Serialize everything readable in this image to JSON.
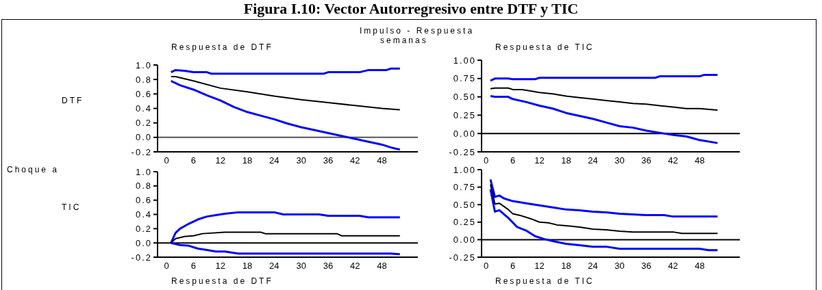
{
  "chart_data": [
    {
      "type": "line",
      "title": "Respuesta de DTF",
      "ylabel": "DTF",
      "annotations": [
        "Figura I.10:  Vector Autorregresivo entre DTF  y  TIC",
        "Impulso - Respuesta",
        "semanas",
        "Choque a"
      ],
      "marker": "none",
      "xlim": [
        -2,
        56
      ],
      "xticks": [
        0,
        6,
        12,
        18,
        24,
        30,
        36,
        42,
        48
      ],
      "ylim": [
        -0.2,
        1.0
      ],
      "yticks": [
        -0.2,
        {
          "value": 0,
          "label": "0.0"
        },
        0.2,
        0.4,
        0.6,
        0.8,
        {
          "value": 1,
          "label": "1.0"
        }
      ],
      "ref_lines": [
        {
          "axis": "y",
          "value": 0,
          "color": "#555555"
        }
      ],
      "series": [
        {
          "color": "#0000ff",
          "x": [
            1,
            2,
            4,
            6,
            9,
            10,
            35,
            36,
            43,
            45,
            49,
            50,
            52
          ],
          "values": [
            0.9,
            0.93,
            0.92,
            0.9,
            0.9,
            0.88,
            0.88,
            0.9,
            0.9,
            0.93,
            0.93,
            0.95,
            0.95
          ]
        },
        {
          "color": "#000000",
          "x": [
            1,
            2,
            6,
            12,
            18,
            24,
            30,
            36,
            42,
            48,
            52
          ],
          "values": [
            0.84,
            0.84,
            0.78,
            0.68,
            0.63,
            0.57,
            0.52,
            0.48,
            0.44,
            0.4,
            0.38
          ]
        },
        {
          "color": "#0000ff",
          "x": [
            1,
            3,
            6,
            9,
            12,
            15,
            18,
            21,
            24,
            27,
            30,
            33,
            36,
            39,
            42,
            45,
            48,
            50,
            52
          ],
          "values": [
            0.78,
            0.72,
            0.66,
            0.58,
            0.51,
            0.42,
            0.35,
            0.3,
            0.25,
            0.19,
            0.14,
            0.1,
            0.06,
            0.02,
            -0.02,
            -0.06,
            -0.1,
            -0.14,
            -0.17
          ]
        }
      ]
    },
    {
      "type": "line",
      "title": "Respuesta de TIC",
      "marker": "none",
      "xlim": [
        -1,
        57
      ],
      "xticks": [
        0,
        6,
        12,
        18,
        24,
        30,
        36,
        42,
        48
      ],
      "ylim": [
        -0.25,
        1.0
      ],
      "yticks": [
        -0.25,
        {
          "value": 0,
          "label": "0.00"
        },
        0.25,
        {
          "value": 0.5,
          "label": "0.50"
        },
        0.75,
        {
          "value": 1,
          "label": "1.00"
        }
      ],
      "ref_lines": [
        {
          "axis": "y",
          "value": 0,
          "color": "#000000"
        }
      ],
      "series": [
        {
          "color": "#0000ff",
          "x": [
            1,
            2,
            5,
            6,
            11,
            12,
            38,
            39,
            48,
            49,
            52
          ],
          "values": [
            0.72,
            0.75,
            0.75,
            0.74,
            0.74,
            0.76,
            0.76,
            0.78,
            0.78,
            0.8,
            0.8
          ]
        },
        {
          "color": "#000000",
          "x": [
            1,
            2,
            5,
            6,
            8,
            10,
            12,
            15,
            18,
            21,
            24,
            27,
            30,
            33,
            36,
            39,
            42,
            45,
            48,
            52
          ],
          "values": [
            0.61,
            0.62,
            0.62,
            0.6,
            0.6,
            0.58,
            0.56,
            0.54,
            0.51,
            0.49,
            0.47,
            0.45,
            0.43,
            0.41,
            0.4,
            0.38,
            0.36,
            0.34,
            0.34,
            0.32
          ]
        },
        {
          "color": "#0000ff",
          "x": [
            1,
            2,
            5,
            6,
            9,
            12,
            15,
            18,
            21,
            24,
            27,
            30,
            33,
            36,
            39,
            42,
            45,
            48,
            52
          ],
          "values": [
            0.51,
            0.5,
            0.5,
            0.47,
            0.43,
            0.38,
            0.34,
            0.28,
            0.24,
            0.2,
            0.15,
            0.1,
            0.08,
            0.04,
            0.01,
            -0.02,
            -0.04,
            -0.09,
            -0.13
          ]
        }
      ]
    },
    {
      "type": "line",
      "xlabel": "Respuesta de DTF",
      "ylabel": "TIC",
      "marker": "none",
      "xlim": [
        -2,
        56
      ],
      "xticks": [
        0,
        6,
        12,
        18,
        24,
        30,
        36,
        42,
        48
      ],
      "ylim": [
        -0.2,
        1.0
      ],
      "yticks": [
        -0.2,
        {
          "value": 0,
          "label": "0.0"
        },
        0.2,
        0.4,
        0.6,
        0.8,
        {
          "value": 1,
          "label": "1.0"
        }
      ],
      "ref_lines": [
        {
          "axis": "y",
          "value": 0,
          "color": "#000000"
        }
      ],
      "series": [
        {
          "color": "#0000ff",
          "x": [
            1,
            2,
            3,
            5,
            7,
            9,
            11,
            13,
            16,
            24,
            26,
            34,
            36,
            43,
            45,
            52
          ],
          "values": [
            0,
            0.14,
            0.2,
            0.27,
            0.33,
            0.37,
            0.39,
            0.41,
            0.43,
            0.43,
            0.4,
            0.4,
            0.38,
            0.38,
            0.36,
            0.36
          ]
        },
        {
          "color": "#000000",
          "x": [
            1,
            2,
            4,
            6,
            8,
            13,
            21,
            22,
            38,
            39,
            52
          ],
          "values": [
            0,
            0.06,
            0.09,
            0.1,
            0.13,
            0.15,
            0.15,
            0.13,
            0.13,
            0.1,
            0.1
          ]
        },
        {
          "color": "#0000ff",
          "x": [
            1,
            3,
            5,
            7,
            9,
            11,
            13,
            16,
            50,
            52
          ],
          "values": [
            0,
            -0.03,
            -0.04,
            -0.08,
            -0.1,
            -0.12,
            -0.12,
            -0.15,
            -0.15,
            -0.16
          ]
        }
      ]
    },
    {
      "type": "line",
      "xlabel": "Respuesta de TIC",
      "marker": "none",
      "xlim": [
        -1,
        57
      ],
      "xticks": [
        0,
        6,
        12,
        18,
        24,
        30,
        36,
        42,
        48
      ],
      "ylim": [
        -0.25,
        1.0
      ],
      "yticks": [
        -0.25,
        {
          "value": 0,
          "label": "0.00"
        },
        0.25,
        {
          "value": 0.5,
          "label": "0.50"
        },
        0.75,
        {
          "value": 1,
          "label": "1.00"
        }
      ],
      "ref_lines": [
        {
          "axis": "y",
          "value": 0,
          "color": "#000000"
        }
      ],
      "series": [
        {
          "color": "#0000ff",
          "x": [
            1,
            2,
            3,
            4,
            6,
            9,
            12,
            15,
            18,
            21,
            24,
            27,
            30,
            33,
            36,
            40,
            42,
            52
          ],
          "values": [
            0.86,
            0.61,
            0.63,
            0.59,
            0.55,
            0.52,
            0.49,
            0.46,
            0.43,
            0.42,
            0.4,
            0.39,
            0.37,
            0.36,
            0.35,
            0.35,
            0.33,
            0.33
          ]
        },
        {
          "color": "#000000",
          "x": [
            1,
            2,
            3,
            5,
            6,
            8,
            10,
            12,
            14,
            16,
            18,
            21,
            24,
            27,
            30,
            33,
            42,
            44,
            52
          ],
          "values": [
            0.79,
            0.51,
            0.52,
            0.43,
            0.37,
            0.34,
            0.3,
            0.25,
            0.24,
            0.21,
            0.2,
            0.18,
            0.15,
            0.14,
            0.12,
            0.11,
            0.11,
            0.09,
            0.09
          ]
        },
        {
          "color": "#0000ff",
          "x": [
            1,
            2,
            3,
            5,
            7,
            9,
            11,
            13,
            15,
            18,
            21,
            24,
            27,
            30,
            48,
            50,
            52
          ],
          "values": [
            0.72,
            0.4,
            0.42,
            0.31,
            0.18,
            0.13,
            0.05,
            0.01,
            -0.02,
            -0.06,
            -0.08,
            -0.1,
            -0.1,
            -0.13,
            -0.13,
            -0.15,
            -0.15
          ]
        }
      ]
    }
  ]
}
